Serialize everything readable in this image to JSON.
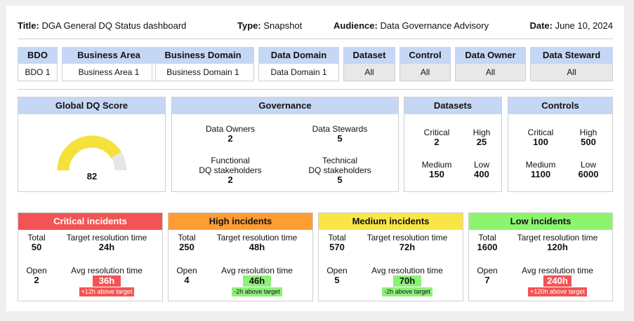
{
  "header": {
    "title_label": "Title:",
    "title_value": "DGA General DQ Status dashboard",
    "type_label": "Type:",
    "type_value": "Snapshot",
    "audience_label": "Audience:",
    "audience_value": "Data Governance Advisory",
    "date_label": "Date:",
    "date_value": "June 10, 2024"
  },
  "filters": [
    {
      "label": "BDO",
      "value": "BDO 1"
    },
    {
      "label": "Business Area",
      "value": "Business Area 1"
    },
    {
      "label": "Business Domain",
      "value": "Business Domain 1"
    },
    {
      "label": "Data Domain",
      "value": "Data Domain 1"
    },
    {
      "label": "Dataset",
      "value": "All"
    },
    {
      "label": "Control",
      "value": "All"
    },
    {
      "label": "Data Owner",
      "value": "All"
    },
    {
      "label": "Data Steward",
      "value": "All"
    }
  ],
  "global_score": {
    "title": "Global DQ Score",
    "value": "82",
    "fraction": 0.82,
    "gauge_color": "#f4e13a",
    "track_color": "#e6e6e6"
  },
  "governance": {
    "title": "Governance",
    "data_owners": {
      "label": "Data Owners",
      "value": "2"
    },
    "data_stewards": {
      "label": "Data Stewards",
      "value": "5"
    },
    "functional": {
      "label1": "Functional",
      "label2": "DQ stakeholders",
      "value": "2"
    },
    "technical": {
      "label1": "Technical",
      "label2": "DQ stakeholders",
      "value": "5"
    }
  },
  "datasets": {
    "title": "Datasets",
    "critical": {
      "label": "Critical",
      "value": "2"
    },
    "high": {
      "label": "High",
      "value": "25"
    },
    "medium": {
      "label": "Medium",
      "value": "150"
    },
    "low": {
      "label": "Low",
      "value": "400"
    }
  },
  "controls": {
    "title": "Controls",
    "critical": {
      "label": "Critical",
      "value": "100"
    },
    "high": {
      "label": "High",
      "value": "500"
    },
    "medium": {
      "label": "Medium",
      "value": "1100"
    },
    "low": {
      "label": "Low",
      "value": "6000"
    }
  },
  "incidents": [
    {
      "title": "Critical incidents",
      "color": "#f25454",
      "title_color": "#ffffff",
      "total_label": "Total",
      "total": "50",
      "target_label": "Target resolution time",
      "target": "24h",
      "open_label": "Open",
      "open": "2",
      "avg_label": "Avg resolution time",
      "avg": "36h",
      "avg_color": "#f25454",
      "avg_text_color": "#ffffff",
      "note": "+12h above target",
      "note_color": "#f25454",
      "note_text_color": "#ffffff"
    },
    {
      "title": "High incidents",
      "color": "#ff9c33",
      "title_color": "#111111",
      "total_label": "Total",
      "total": "250",
      "target_label": "Target resolution time",
      "target": "48h",
      "open_label": "Open",
      "open": "4",
      "avg_label": "Avg resolution time",
      "avg": "46h",
      "avg_color": "#8ef07a",
      "avg_text_color": "#111111",
      "note": "-2h above target",
      "note_color": "#8ef07a",
      "note_text_color": "#111111"
    },
    {
      "title": "Medium incidents",
      "color": "#f9e646",
      "title_color": "#111111",
      "total_label": "Total",
      "total": "570",
      "target_label": "Target resolution time",
      "target": "72h",
      "open_label": "Open",
      "open": "5",
      "avg_label": "Avg resolution time",
      "avg": "70h",
      "avg_color": "#8ef07a",
      "avg_text_color": "#111111",
      "note": "-2h above target",
      "note_color": "#8ef07a",
      "note_text_color": "#111111"
    },
    {
      "title": "Low incidents",
      "color": "#8cf56e",
      "title_color": "#111111",
      "total_label": "Total",
      "total": "1600",
      "target_label": "Target resolution time",
      "target": "120h",
      "open_label": "Open",
      "open": "7",
      "avg_label": "Avg resolution time",
      "avg": "240h",
      "avg_color": "#f25454",
      "avg_text_color": "#ffffff",
      "note": "+120h above target",
      "note_color": "#f25454",
      "note_text_color": "#ffffff"
    }
  ]
}
